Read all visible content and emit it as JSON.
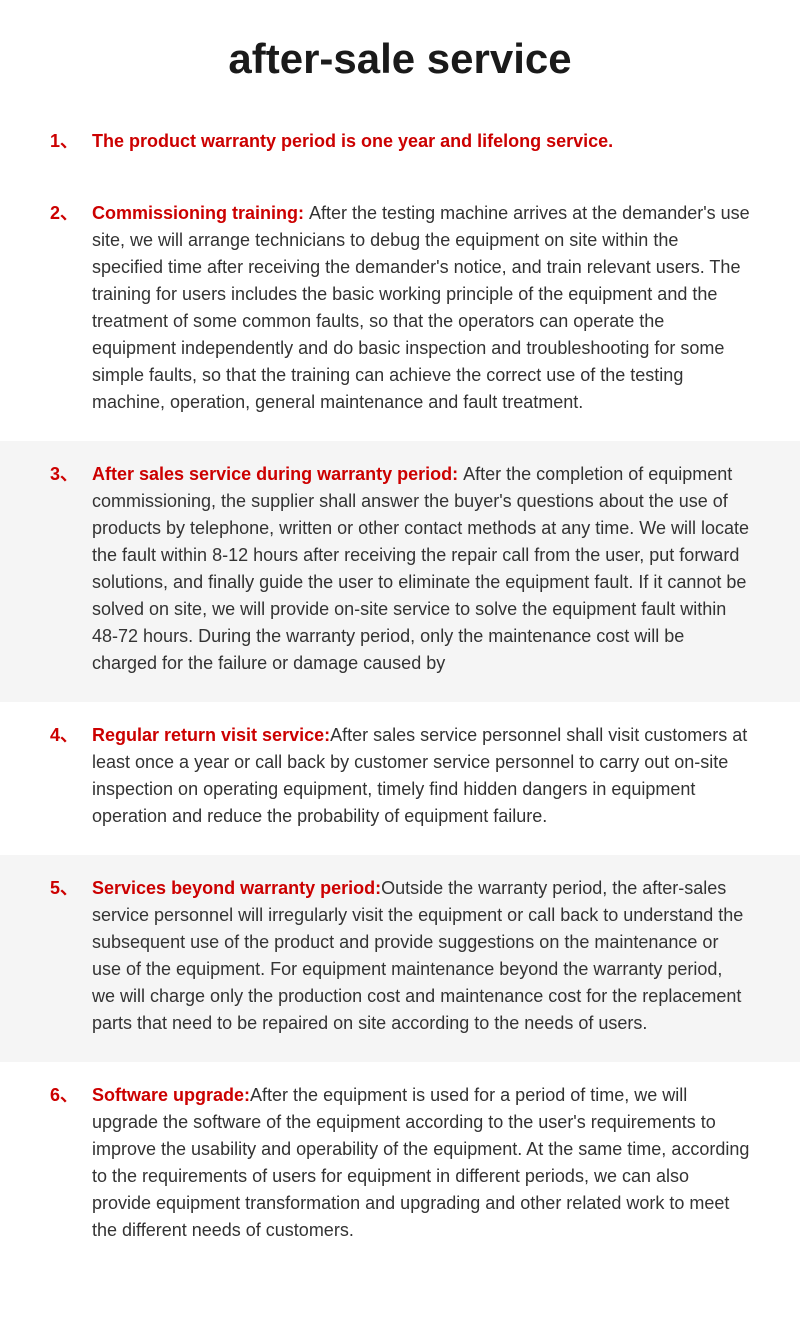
{
  "title": "after-sale service",
  "colors": {
    "accent": "#cc0000",
    "text": "#333333",
    "title": "#1a1a1a",
    "bg_light": "#ffffff",
    "bg_gray": "#f5f5f5"
  },
  "typography": {
    "title_fontsize": 42,
    "body_fontsize": 18,
    "title_weight": 700,
    "heading_weight": 700,
    "body_weight": 400
  },
  "items": [
    {
      "number": "1、",
      "heading": "The product warranty period is one year and lifelong service.",
      "body": "",
      "bg": "light",
      "all_red": true
    },
    {
      "number": "2、",
      "heading": "Commissioning training: ",
      "body": "After the testing machine arrives at the demander's use site, we will arrange technicians to debug the equipment on site within the specified time after receiving the demander's notice, and train relevant users. The training for users includes the basic working principle of the equipment and the treatment of some common faults, so that the operators can operate the equipment independently and do basic inspection and troubleshooting for some simple faults, so that the training can achieve the correct use of the testing machine, operation, general maintenance and fault treatment.",
      "bg": "light",
      "all_red": false
    },
    {
      "number": "3、",
      "heading": " After sales service during warranty period: ",
      "body": "After the completion of equipment commissioning, the supplier shall answer the buyer's questions about the use of products by telephone, written or other contact methods at any time. We will locate the fault within 8-12 hours after receiving the repair call from the user, put forward solutions, and finally guide the user to eliminate the    equipment fault. If it cannot be solved on site, we will provide on-site service to solve the equipment fault within 48-72 hours. During the warranty period, only the maintenance cost will be charged for the failure or damage caused by",
      "bg": "gray",
      "all_red": false
    },
    {
      "number": "4、",
      "heading": "Regular return visit service:",
      "body": "After sales service personnel shall visit customers at least once a year or call back by customer service personnel to carry out on-site inspection on operating equipment, timely find hidden dangers in equipment operation and reduce the probability of equipment failure.",
      "bg": "light",
      "all_red": false
    },
    {
      "number": "5、",
      "heading": "Services beyond warranty period:",
      "body": "Outside the warranty period, the after-sales service personnel will irregularly visit the equipment or call back to understand the subsequent use of the product and provide suggestions on the maintenance or use of the equipment. For equipment maintenance beyond the warranty period, we will charge only the production cost and maintenance cost for the replacement parts that need to be repaired on site according to the needs of users.",
      "bg": "gray",
      "all_red": false
    },
    {
      "number": "6、",
      "heading": "Software upgrade:",
      "body": "After the equipment is used for a period of time, we will upgrade the software of the equipment according to the user's requirements to improve the usability and operability of the equipment. At the same time, according to the requirements of users for equipment in different periods, we can also provide equipment transformation and upgrading and other related work to meet the different needs of customers.",
      "bg": "light",
      "all_red": false
    }
  ]
}
